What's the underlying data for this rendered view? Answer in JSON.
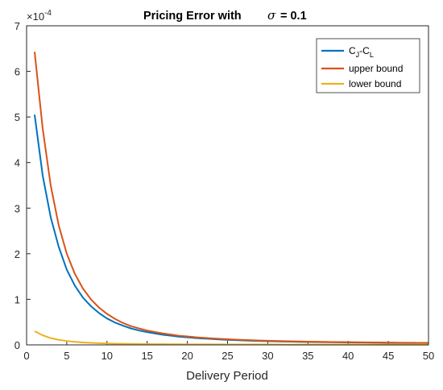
{
  "chart_data": {
    "type": "line",
    "title": "Pricing Error with",
    "title_symbol": "σ",
    "title_value": "= 0.1",
    "xlabel": "Delivery Period",
    "ylabel": "",
    "xlim": [
      0,
      50
    ],
    "ylim": [
      0,
      7
    ],
    "y_multiplier_base": "×10",
    "y_multiplier_exp": "-4",
    "xticks": [
      "0",
      "5",
      "10",
      "15",
      "20",
      "25",
      "30",
      "35",
      "40",
      "45",
      "50"
    ],
    "yticks": [
      "0",
      "1",
      "2",
      "3",
      "4",
      "5",
      "6",
      "7"
    ],
    "grid": false,
    "legend_position": "top-right",
    "legend": {
      "cj": "C",
      "cj_sub": "J",
      "cl": "-C",
      "cl_sub": "L",
      "upper": "upper bound",
      "lower": "lower bound"
    },
    "x": [
      1,
      2,
      3,
      4,
      5,
      6,
      7,
      8,
      9,
      10,
      11,
      12,
      13,
      14,
      15,
      16,
      17,
      18,
      19,
      20,
      21,
      22,
      23,
      24,
      25,
      26,
      27,
      28,
      29,
      30,
      31,
      32,
      33,
      34,
      35,
      36,
      37,
      38,
      39,
      40,
      41,
      42,
      43,
      44,
      45,
      46,
      47,
      48,
      49,
      50
    ],
    "series": [
      {
        "key": "cjcl",
        "color": "#0072BD",
        "values": [
          5.05,
          3.72,
          2.8,
          2.15,
          1.65,
          1.3,
          1.04,
          0.85,
          0.7,
          0.58,
          0.49,
          0.42,
          0.36,
          0.315,
          0.28,
          0.25,
          0.22,
          0.2,
          0.18,
          0.165,
          0.15,
          0.14,
          0.13,
          0.12,
          0.11,
          0.103,
          0.097,
          0.091,
          0.086,
          0.081,
          0.077,
          0.073,
          0.07,
          0.067,
          0.064,
          0.061,
          0.059,
          0.057,
          0.055,
          0.053,
          0.051,
          0.05,
          0.048,
          0.047,
          0.045,
          0.044,
          0.043,
          0.042,
          0.041,
          0.04
        ]
      },
      {
        "key": "upper",
        "color": "#D95319",
        "values": [
          6.43,
          4.75,
          3.5,
          2.62,
          2.0,
          1.56,
          1.24,
          1.0,
          0.82,
          0.68,
          0.57,
          0.48,
          0.41,
          0.36,
          0.315,
          0.28,
          0.25,
          0.225,
          0.2,
          0.185,
          0.168,
          0.155,
          0.143,
          0.133,
          0.124,
          0.116,
          0.109,
          0.102,
          0.096,
          0.091,
          0.086,
          0.082,
          0.078,
          0.075,
          0.071,
          0.068,
          0.066,
          0.063,
          0.061,
          0.059,
          0.057,
          0.055,
          0.053,
          0.052,
          0.05,
          0.049,
          0.047,
          0.046,
          0.045,
          0.044
        ]
      },
      {
        "key": "lower",
        "color": "#EDB120",
        "values": [
          0.3,
          0.21,
          0.15,
          0.11,
          0.085,
          0.067,
          0.054,
          0.044,
          0.037,
          0.031,
          0.027,
          0.024,
          0.021,
          0.019,
          0.017,
          0.016,
          0.015,
          0.014,
          0.013,
          0.012,
          0.011,
          0.011,
          0.01,
          0.01,
          0.009,
          0.009,
          0.009,
          0.008,
          0.008,
          0.008,
          0.008,
          0.007,
          0.007,
          0.007,
          0.007,
          0.007,
          0.006,
          0.006,
          0.006,
          0.006,
          0.006,
          0.006,
          0.006,
          0.005,
          0.005,
          0.005,
          0.005,
          0.005,
          0.005,
          0.005
        ]
      }
    ]
  }
}
